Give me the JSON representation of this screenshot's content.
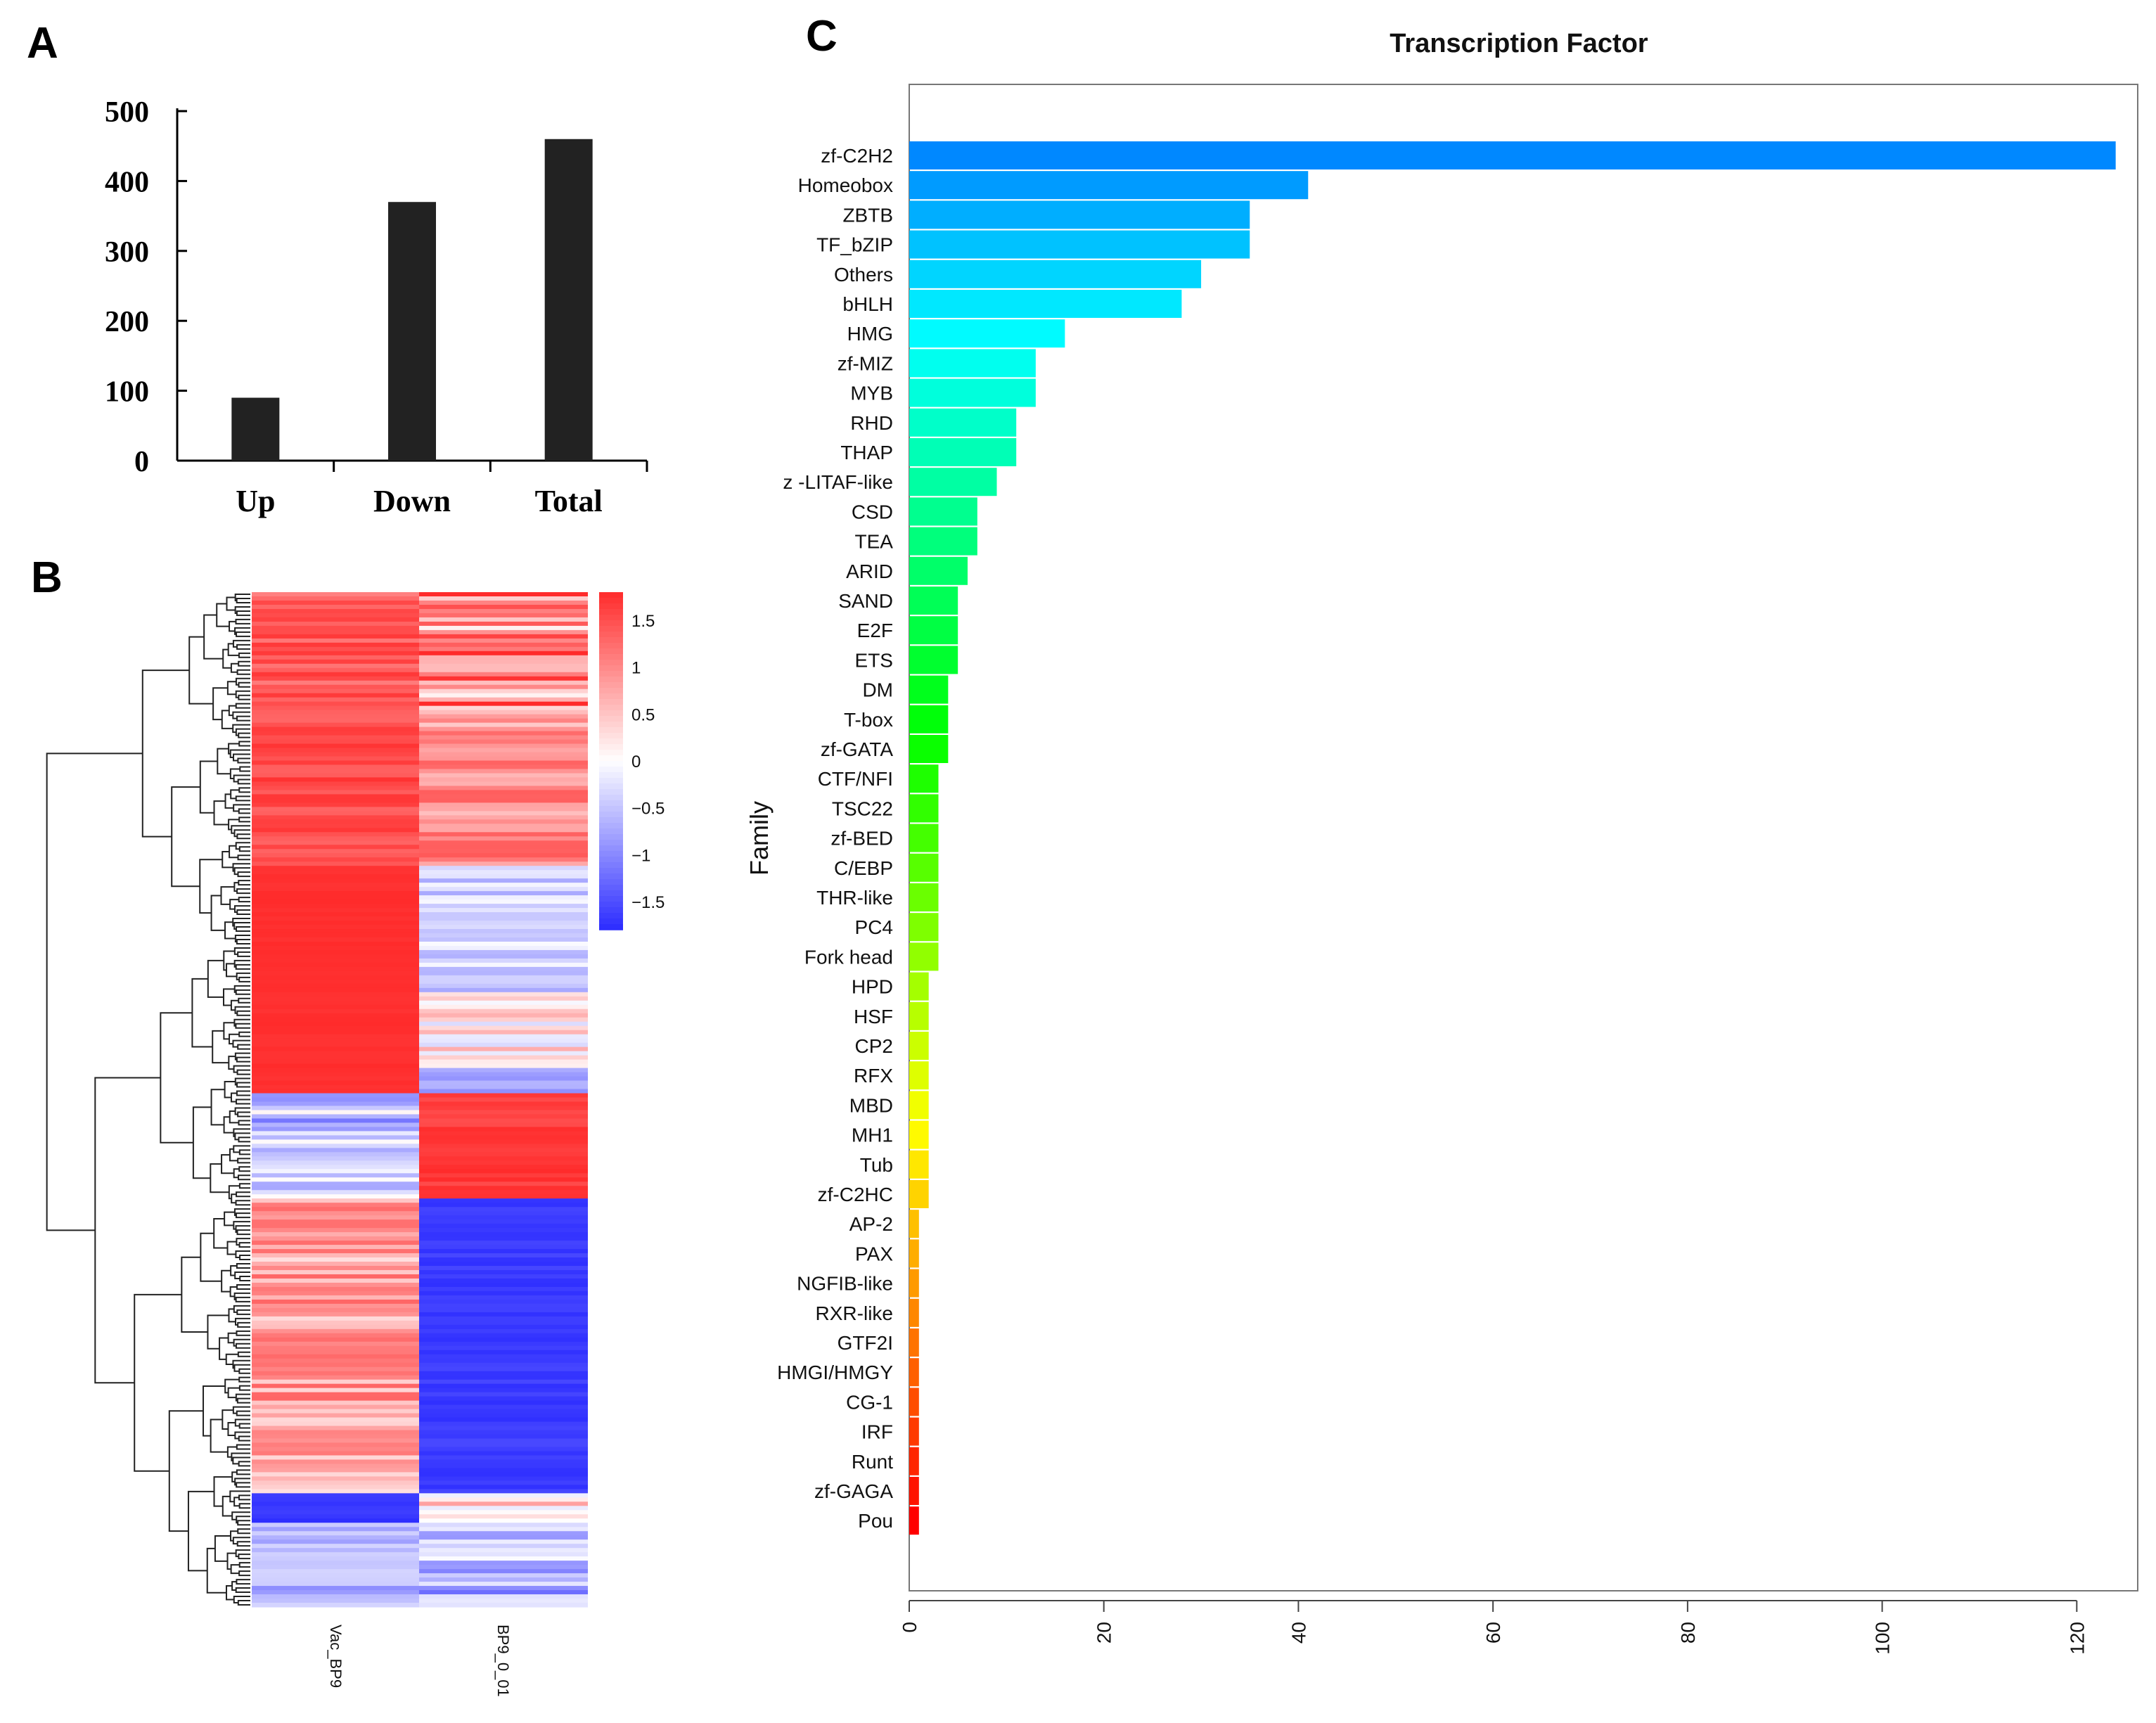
{
  "panels": {
    "a": "A",
    "b": "B",
    "c": "C"
  },
  "chart_data": [
    {
      "id": "A",
      "type": "bar",
      "categories": [
        "Up",
        "Down",
        "Total"
      ],
      "values": [
        90,
        370,
        460
      ],
      "ylim": [
        0,
        500
      ],
      "yticks": [
        "0",
        "100",
        "200",
        "300",
        "400",
        "500"
      ],
      "title": "",
      "xlabel": "",
      "ylabel": "",
      "bar_color": "#222222"
    },
    {
      "id": "B",
      "type": "heatmap",
      "columns": [
        "Vac_BP9",
        "BP9_0_01"
      ],
      "colorbar": {
        "min": -1.8,
        "max": 1.8,
        "ticks": [
          "1.5",
          "1",
          "0.5",
          "0",
          "−0.5",
          "−1",
          "−1.5"
        ],
        "tick_values": [
          1.5,
          1,
          0.5,
          0,
          -0.5,
          -1,
          -1.5
        ],
        "low_color": "#2b2bff",
        "mid_color": "#ffffff",
        "high_color": "#ff2b2b"
      },
      "row_clusters": [
        {
          "rows": 35,
          "col1": 0.78,
          "col2": 0.55,
          "var1": 0.18,
          "var2": 0.55
        },
        {
          "rows": 30,
          "col1": 0.85,
          "col2": 0.55,
          "var1": 0.12,
          "var2": 0.25
        },
        {
          "rows": 30,
          "col1": 0.98,
          "col2": -0.22,
          "var1": 0.02,
          "var2": 0.2
        },
        {
          "rows": 18,
          "col1": 0.98,
          "col2": 0.12,
          "var1": 0.02,
          "var2": 0.3
        },
        {
          "rows": 6,
          "col1": 0.98,
          "col2": -0.45,
          "var1": 0.02,
          "var2": 0.1
        },
        {
          "rows": 25,
          "col1": -0.3,
          "col2": 0.92,
          "var1": 0.35,
          "var2": 0.08
        },
        {
          "rows": 70,
          "col1": 0.45,
          "col2": -0.92,
          "var1": 0.3,
          "var2": 0.06
        },
        {
          "rows": 7,
          "col1": -0.95,
          "col2": 0.2,
          "var1": 0.04,
          "var2": 0.3
        },
        {
          "rows": 20,
          "col1": -0.35,
          "col2": -0.35,
          "var1": 0.2,
          "var2": 0.35
        }
      ]
    },
    {
      "id": "C",
      "type": "bar",
      "orientation": "horizontal",
      "title": "Transcription Factor",
      "xlabel": "",
      "ylabel": "Family",
      "xlim": [
        0,
        125
      ],
      "xticks": [
        0,
        20,
        40,
        60,
        80,
        100,
        120
      ],
      "categories": [
        "zf-C2H2",
        "Homeobox",
        "ZBTB",
        "TF_bZIP",
        "Others",
        "bHLH",
        "HMG",
        "zf-MIZ",
        "MYB",
        "RHD",
        "THAP",
        "z -LITAF-like",
        "CSD",
        "TEA",
        "ARID",
        "SAND",
        "E2F",
        "ETS",
        "DM",
        "T-box",
        "zf-GATA",
        "CTF/NFI",
        "TSC22",
        "zf-BED",
        "C/EBP",
        "THR-like",
        "PC4",
        "Fork head",
        "HPD",
        "HSF",
        "CP2",
        "RFX",
        "MBD",
        "MH1",
        "Tub",
        "zf-C2HC",
        "AP-2",
        "PAX",
        "NGFIB-like",
        "RXR-like",
        "GTF2I",
        "HMGI/HMGY",
        "CG-1",
        "IRF",
        "Runt",
        "zf-GAGA",
        "Pou"
      ],
      "values": [
        124,
        41,
        35,
        35,
        30,
        28,
        16,
        13,
        13,
        11,
        11,
        9,
        7,
        7,
        6,
        5,
        5,
        5,
        4,
        4,
        4,
        3,
        3,
        3,
        3,
        3,
        3,
        3,
        2,
        2,
        2,
        2,
        2,
        2,
        2,
        2,
        1,
        1,
        1,
        1,
        1,
        1,
        1,
        1,
        1,
        1,
        1
      ]
    }
  ]
}
